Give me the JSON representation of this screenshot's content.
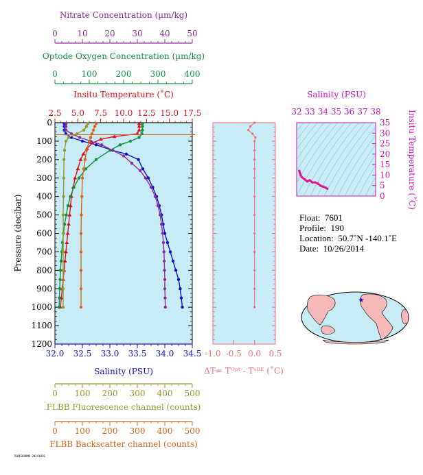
{
  "colors": {
    "nitrate": "#8b2c9a",
    "oxygen": "#119140",
    "temperature": "#e0101a",
    "salinity": "#1010d0",
    "fluorescence": "#9a9a2a",
    "backscatter": "#d9661a",
    "delta_t": "#f06a74",
    "ts": "#e01890",
    "panel_bg": "#c8ecf6"
  },
  "axes": {
    "nitrate": {
      "label": "Nitrate Concentration (µm/kg)",
      "ticks": [
        "0",
        "10",
        "20",
        "30",
        "40",
        "50"
      ],
      "range": [
        0,
        50
      ]
    },
    "oxygen": {
      "label": "Optode Oxygen Concentration (µm/kg)",
      "ticks": [
        "0",
        "100",
        "200",
        "300",
        "400"
      ],
      "range": [
        0,
        400
      ]
    },
    "temperature": {
      "label": "Insitu Temperature (˚C)",
      "ticks": [
        "2.5",
        "5.0",
        "7.5",
        "10.0",
        "12.5",
        "15.0",
        "17.5"
      ],
      "range": [
        2.5,
        17.5
      ]
    },
    "pressure": {
      "label": "Pressure (decibar)",
      "ticks": [
        "0",
        "100",
        "200",
        "300",
        "400",
        "500",
        "600",
        "700",
        "800",
        "900",
        "1000",
        "1100",
        "1200"
      ],
      "range": [
        0,
        1200
      ]
    },
    "salinity": {
      "label": "Salinity (PSU)",
      "ticks": [
        "32.0",
        "32.5",
        "33.0",
        "33.5",
        "34.0",
        "34.5"
      ],
      "range": [
        32.0,
        34.5
      ]
    },
    "fluorescence": {
      "label": "FLBB Fluorescence channel (counts)",
      "ticks": [
        "0",
        "100",
        "200",
        "300",
        "400",
        "500"
      ],
      "range": [
        0,
        500
      ]
    },
    "backscatter": {
      "label": "FLBB Backscatter channel (counts)",
      "ticks": [
        "0",
        "100",
        "200",
        "300",
        "400",
        "500"
      ],
      "range": [
        0,
        500
      ]
    },
    "delta_t": {
      "label": "ΔT= Tᴼᵖᵗ - Tˢᴮᴱ (˚C)",
      "ticks": [
        "-1.0",
        "-0.5",
        "0.0",
        "0.5"
      ],
      "range": [
        -1.0,
        0.5
      ]
    },
    "ts_salinity": {
      "label": "Salinity (PSU)",
      "ticks": [
        "32",
        "33",
        "34",
        "35",
        "36",
        "37",
        "38"
      ],
      "range": [
        32,
        38
      ]
    },
    "ts_temperature": {
      "label": "Insitu Temperature (˚C)",
      "ticks": [
        "0",
        "5",
        "10",
        "15",
        "20",
        "25",
        "30",
        "35"
      ],
      "range": [
        0,
        35
      ]
    }
  },
  "info": {
    "float_label": "Float:",
    "float_value": "7601",
    "profile_label": "Profile:",
    "profile_value": "190",
    "location_label": "Location:",
    "location_value": "50.7˚N  -140.1˚E",
    "date_label": "Date:",
    "date_value": "10/26/2014"
  },
  "footer_text": "7601SO8OMR 20141026",
  "chart_data": [
    {
      "type": "line",
      "panel": "profiles",
      "y_axis": "Pressure (decibar)",
      "series": [
        {
          "name": "Salinity (PSU)",
          "axis": "salinity",
          "color": "#1010d0",
          "points": [
            [
              32.17,
              5
            ],
            [
              32.17,
              20
            ],
            [
              32.17,
              40
            ],
            [
              32.2,
              60
            ],
            [
              32.3,
              80
            ],
            [
              32.5,
              100
            ],
            [
              32.75,
              120
            ],
            [
              33.05,
              150
            ],
            [
              33.3,
              170
            ],
            [
              33.52,
              200
            ],
            [
              33.6,
              250
            ],
            [
              33.7,
              300
            ],
            [
              33.78,
              350
            ],
            [
              33.85,
              400
            ],
            [
              33.9,
              450
            ],
            [
              33.94,
              500
            ],
            [
              33.97,
              550
            ],
            [
              34.0,
              600
            ],
            [
              34.05,
              650
            ],
            [
              34.1,
              700
            ],
            [
              34.15,
              750
            ],
            [
              34.2,
              800
            ],
            [
              34.25,
              850
            ],
            [
              34.28,
              900
            ],
            [
              34.3,
              950
            ],
            [
              34.32,
              1000
            ]
          ]
        },
        {
          "name": "Insitu Temperature (˚C)",
          "axis": "temperature",
          "color": "#e0101a",
          "points": [
            [
              11.7,
              5
            ],
            [
              11.7,
              20
            ],
            [
              11.7,
              40
            ],
            [
              11.5,
              60
            ],
            [
              9.0,
              75
            ],
            [
              7.5,
              90
            ],
            [
              6.6,
              110
            ],
            [
              6.0,
              140
            ],
            [
              5.6,
              170
            ],
            [
              5.3,
              200
            ],
            [
              5.0,
              250
            ],
            [
              4.7,
              300
            ],
            [
              4.5,
              350
            ],
            [
              4.3,
              400
            ],
            [
              4.2,
              450
            ],
            [
              4.1,
              500
            ],
            [
              4.0,
              550
            ],
            [
              3.9,
              600
            ],
            [
              3.8,
              650
            ],
            [
              3.7,
              700
            ],
            [
              3.6,
              750
            ],
            [
              3.5,
              800
            ],
            [
              3.4,
              850
            ],
            [
              3.3,
              900
            ],
            [
              3.2,
              950
            ],
            [
              3.1,
              1000
            ]
          ]
        },
        {
          "name": "Optode Oxygen Concentration (µm/kg)",
          "axis": "oxygen",
          "color": "#119140",
          "points": [
            [
              255,
              5
            ],
            [
              255,
              20
            ],
            [
              255,
              40
            ],
            [
              253,
              60
            ],
            [
              245,
              80
            ],
            [
              220,
              100
            ],
            [
              190,
              120
            ],
            [
              160,
              150
            ],
            [
              120,
              200
            ],
            [
              90,
              250
            ],
            [
              70,
              300
            ],
            [
              55,
              350
            ],
            [
              45,
              400
            ],
            [
              38,
              450
            ],
            [
              33,
              500
            ],
            [
              28,
              550
            ],
            [
              25,
              600
            ],
            [
              22,
              650
            ],
            [
              20,
              700
            ],
            [
              18,
              750
            ],
            [
              16,
              800
            ],
            [
              15,
              850
            ],
            [
              14,
              900
            ],
            [
              13,
              950
            ],
            [
              12,
              1000
            ]
          ]
        },
        {
          "name": "Nitrate Concentration (µm/kg)",
          "axis": "nitrate",
          "color": "#8b2c9a",
          "points": [
            [
              4,
              5
            ],
            [
              4,
              20
            ],
            [
              4,
              40
            ],
            [
              6,
              60
            ],
            [
              9,
              80
            ],
            [
              13,
              100
            ],
            [
              17,
              120
            ],
            [
              21,
              150
            ],
            [
              25,
              180
            ],
            [
              28,
              220
            ],
            [
              31,
              260
            ],
            [
              33,
              300
            ],
            [
              35,
              350
            ],
            [
              36.5,
              400
            ],
            [
              37.5,
              450
            ],
            [
              38.3,
              500
            ],
            [
              38.8,
              550
            ],
            [
              39.2,
              600
            ],
            [
              39.5,
              650
            ],
            [
              39.7,
              700
            ],
            [
              39.8,
              750
            ],
            [
              39.9,
              800
            ],
            [
              40,
              850
            ],
            [
              40,
              900
            ],
            [
              40.1,
              950
            ],
            [
              40.2,
              1000
            ]
          ]
        },
        {
          "name": "FLBB Fluorescence channel (counts)",
          "axis": "fluorescence",
          "color": "#9a9a2a",
          "points": [
            [
              120,
              5
            ],
            [
              115,
              20
            ],
            [
              105,
              40
            ],
            [
              80,
              60
            ],
            [
              50,
              80
            ],
            [
              40,
              100
            ],
            [
              35,
              150
            ],
            [
              33,
              200
            ],
            [
              32,
              300
            ],
            [
              31,
              400
            ],
            [
              30,
              500
            ],
            [
              30,
              600
            ],
            [
              30,
              700
            ],
            [
              30,
              800
            ],
            [
              30,
              900
            ],
            [
              30,
              1000
            ]
          ]
        },
        {
          "name": "FLBB Backscatter channel (counts)",
          "axis": "backscatter",
          "color": "#d9661a",
          "points": [
            [
              150,
              5
            ],
            [
              145,
              20
            ],
            [
              140,
              40
            ],
            [
              135,
              60
            ],
            [
              130,
              80
            ],
            [
              125,
              100
            ],
            [
              115,
              150
            ],
            [
              110,
              200
            ],
            [
              105,
              250
            ],
            [
              100,
              300
            ],
            [
              98,
              400
            ],
            [
              96,
              500
            ],
            [
              95,
              600
            ],
            [
              95,
              700
            ],
            [
              95,
              800
            ],
            [
              95,
              900
            ],
            [
              95,
              1000
            ]
          ]
        }
      ]
    },
    {
      "type": "scatter",
      "panel": "delta_t",
      "series": [
        {
          "name": "ΔT",
          "color": "#f06a74",
          "points": [
            [
              0.0,
              0
            ],
            [
              -0.1,
              20
            ],
            [
              -0.15,
              40
            ],
            [
              -0.05,
              60
            ],
            [
              0.02,
              80
            ],
            [
              0.0,
              100
            ],
            [
              0.0,
              150
            ],
            [
              0.0,
              200
            ],
            [
              0.0,
              250
            ],
            [
              0.0,
              300
            ],
            [
              0.0,
              400
            ],
            [
              0.0,
              500
            ],
            [
              0.0,
              600
            ],
            [
              0.0,
              700
            ],
            [
              0.0,
              800
            ],
            [
              0.0,
              900
            ],
            [
              0.0,
              1000
            ]
          ]
        }
      ]
    },
    {
      "type": "line",
      "panel": "ts_diagram",
      "series": [
        {
          "name": "T-S",
          "color": "#e01890",
          "points": [
            [
              32.2,
              12
            ],
            [
              32.25,
              11
            ],
            [
              32.3,
              10
            ],
            [
              32.4,
              9
            ],
            [
              32.6,
              8
            ],
            [
              32.8,
              7
            ],
            [
              33.0,
              7.5
            ],
            [
              33.2,
              6.5
            ],
            [
              33.4,
              6.5
            ],
            [
              33.6,
              6
            ],
            [
              33.8,
              5
            ],
            [
              34.0,
              4.5
            ],
            [
              34.2,
              4
            ],
            [
              34.32,
              3.5
            ]
          ]
        }
      ]
    }
  ]
}
